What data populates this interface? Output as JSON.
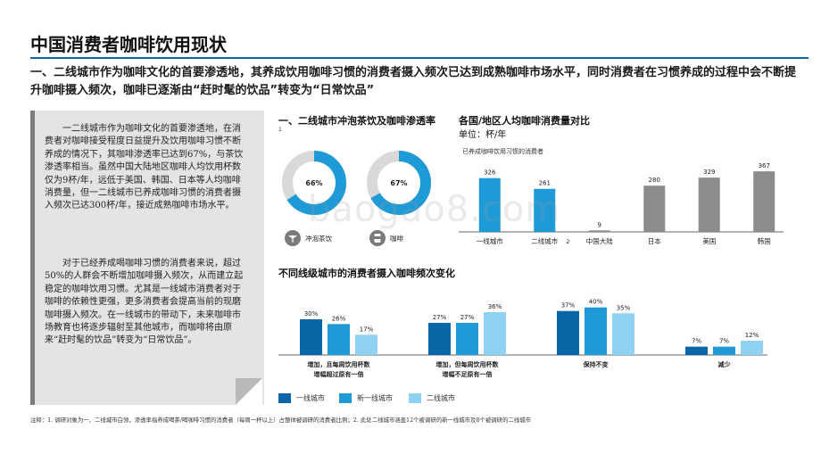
{
  "header": {
    "title": "中国消费者咖啡饮用现状",
    "subtitle": "一、二线城市作为咖啡文化的首要渗透地，其养成饮用咖啡习惯的消费者摄入频次已达到成熟咖啡市场水平，同时消费者在习惯养成的过程中会不断提升咖啡摄入频次，咖啡已逐渐由“赶时髦的饮品”转变为“日常饮品”"
  },
  "notes": {
    "para1": "一二线城市作为咖啡文化的首要渗透地，在消费者对咖啡接受程度日益提升及饮用咖啡习惯不断养成的情况下，其咖啡渗透率已达到67%，与茶饮渗透率相当。虽然中国大陆地区咖啡人均饮用杯数仅为9杯/年，远低于美国、韩国、日本等人均咖啡消费量，但一二线城市已养成咖啡习惯的消费者摄入频次已达300杯/年，接近成熟咖啡市场水平。",
    "para2": "对于已经养成喝咖啡习惯的消费者来说，超过50%的人群会不断增加咖啡摄入频次，从而建立起稳定的咖啡饮用习惯。尤其是一线城市消费者对于咖啡的依赖性更强，更多消费者会提高当前的现磨咖啡摄入频次。在一线城市的带动下，未来咖啡市场教育也将逐步辐射至其他城市，而咖啡将由原来“赶时髦的饮品”转变为“日常饮品”。"
  },
  "colors": {
    "accent": "#0b66a8",
    "mid": "#1e9ad6",
    "light": "#8fd0f3",
    "gray": "#8c8c8c",
    "ring_bg": "#d9d9d9"
  },
  "chart_data": [
    {
      "type": "pie",
      "title": "一、二线城市冲泡茶饮及咖啡渗透率",
      "title_footnote": "1",
      "items": [
        {
          "label": "冲泡茶饮",
          "value": 66,
          "display": "66%",
          "icon": "tea-cup-icon"
        },
        {
          "label": "咖啡",
          "value": 67,
          "display": "67%",
          "icon": "coffee-cup-icon"
        }
      ]
    },
    {
      "type": "bar",
      "title": "各国/地区人均咖啡消费量对比",
      "unit": "单位：杯/年",
      "annotation": "已养成咖啡饮用习惯的消费者",
      "categories": [
        "一线城市",
        "二线城市",
        "中国大陆",
        "日本",
        "美国",
        "韩国"
      ],
      "category_footnotes": [
        "",
        "2",
        "",
        "",
        "",
        ""
      ],
      "values": [
        326,
        261,
        9,
        280,
        329,
        367
      ],
      "groups": [
        "accent",
        "accent",
        "gray",
        "gray",
        "gray",
        "gray"
      ],
      "ylim": [
        0,
        400
      ]
    },
    {
      "type": "bar",
      "title": "不同线级城市的消费者摄入咖啡频次变化",
      "categories": [
        "增加，且每周饮用杯数增幅超过原有一倍",
        "增加，但每周饮用杯数增幅不足原有一倍",
        "保持不变",
        "减少"
      ],
      "series": [
        {
          "name": "一线城市",
          "values": [
            30,
            27,
            37,
            7
          ],
          "labels": [
            "30%",
            "27%",
            "37%",
            "7%"
          ]
        },
        {
          "name": "新一线城市",
          "values": [
            26,
            27,
            40,
            7
          ],
          "labels": [
            "26%",
            "27%",
            "40%",
            "7%"
          ]
        },
        {
          "name": "二线城市",
          "values": [
            17,
            36,
            35,
            12
          ],
          "labels": [
            "17%",
            "36%",
            "35%",
            "12%"
          ]
        }
      ],
      "ylim": [
        0,
        45
      ]
    }
  ],
  "footnote": "注释：1. 调研对象为一、二线城市白领，渗透率指养成喝茶/喝咖啡习惯的消费者（每周一杯以上）占整体被调研的消费者比例；2. 此处二线城市涵盖12个被调研的新一线城市及8个被调研的二线城市",
  "watermark": "baogao8.com"
}
